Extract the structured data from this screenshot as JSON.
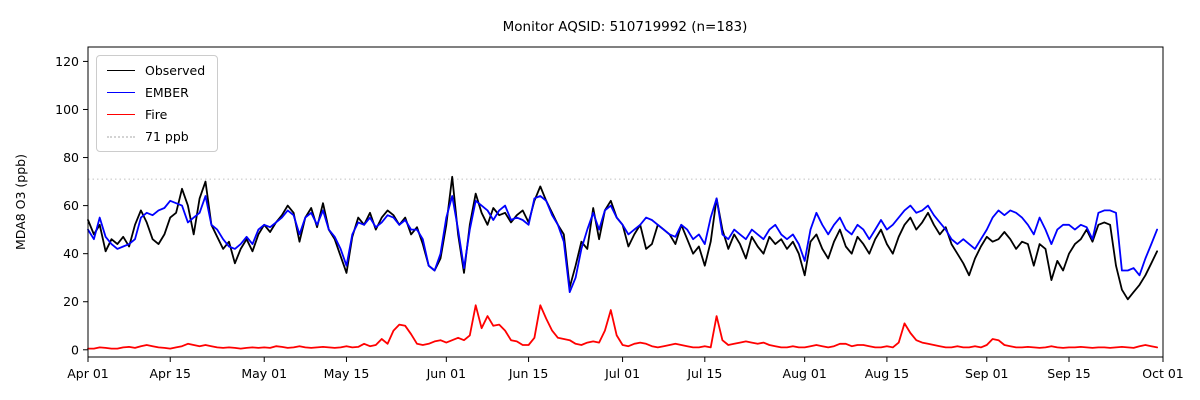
{
  "accent_colors": {
    "observed": "#000000",
    "ember": "#0000ff",
    "fire": "#ff0000",
    "threshold": "#d3d3d3",
    "frame": "#000000"
  },
  "chart_data": {
    "type": "line",
    "title": "Monitor AQSID: 510719992 (n=183)",
    "xlabel": "",
    "ylabel": "MDA8 O3 (ppb)",
    "n_points": 183,
    "x_range_days": [
      0,
      183
    ],
    "ylim": [
      -3,
      126
    ],
    "yticks": [
      0,
      20,
      40,
      60,
      80,
      100,
      120
    ],
    "xticks": [
      {
        "day": 0,
        "label": "Apr 01"
      },
      {
        "day": 14,
        "label": "Apr 15"
      },
      {
        "day": 30,
        "label": "May 01"
      },
      {
        "day": 44,
        "label": "May 15"
      },
      {
        "day": 61,
        "label": "Jun 01"
      },
      {
        "day": 75,
        "label": "Jun 15"
      },
      {
        "day": 91,
        "label": "Jul 01"
      },
      {
        "day": 105,
        "label": "Jul 15"
      },
      {
        "day": 122,
        "label": "Aug 01"
      },
      {
        "day": 136,
        "label": "Aug 15"
      },
      {
        "day": 153,
        "label": "Sep 01"
      },
      {
        "day": 167,
        "label": "Sep 15"
      },
      {
        "day": 183,
        "label": "Oct 01"
      }
    ],
    "threshold": {
      "value": 71,
      "label": "71 ppb",
      "color": "#d3d3d3",
      "style": "dotted"
    },
    "legend": {
      "position": "upper-left",
      "entries": [
        {
          "label": "Observed",
          "color": "#000000",
          "style": "solid"
        },
        {
          "label": "EMBER",
          "color": "#0000ff",
          "style": "solid"
        },
        {
          "label": "Fire",
          "color": "#ff0000",
          "style": "solid"
        },
        {
          "label": "71 ppb",
          "color": "#d3d3d3",
          "style": "dotted"
        }
      ]
    },
    "grid": false,
    "series": [
      {
        "name": "Observed",
        "color": "#000000",
        "style": "solid",
        "values": [
          54,
          48,
          52,
          41,
          46,
          44,
          47,
          43,
          52,
          58,
          53,
          46,
          44,
          48,
          55,
          57,
          67,
          60,
          48,
          63,
          70,
          52,
          47,
          42,
          45,
          36,
          42,
          46,
          41,
          48,
          52,
          49,
          53,
          56,
          60,
          57,
          45,
          55,
          59,
          51,
          61,
          50,
          46,
          39,
          32,
          47,
          55,
          52,
          57,
          50,
          55,
          58,
          56,
          52,
          55,
          48,
          51,
          44,
          35,
          33,
          38,
          52,
          72,
          48,
          32,
          52,
          65,
          57,
          52,
          59,
          56,
          57,
          53,
          56,
          58,
          53,
          62,
          68,
          62,
          57,
          52,
          48,
          26,
          35,
          45,
          42,
          59,
          46,
          58,
          62,
          55,
          52,
          43,
          48,
          52,
          42,
          44,
          52,
          50,
          48,
          44,
          52,
          46,
          40,
          43,
          35,
          45,
          63,
          50,
          42,
          48,
          44,
          38,
          47,
          43,
          40,
          47,
          44,
          46,
          42,
          45,
          40,
          31,
          45,
          48,
          42,
          38,
          45,
          50,
          43,
          40,
          47,
          44,
          40,
          46,
          50,
          44,
          40,
          47,
          52,
          55,
          50,
          53,
          57,
          52,
          48,
          51,
          44,
          40,
          36,
          31,
          38,
          43,
          47,
          45,
          46,
          49,
          46,
          42,
          45,
          44,
          35,
          44,
          42,
          29,
          37,
          33,
          40,
          44,
          46,
          50,
          45,
          52,
          53,
          52,
          35,
          25,
          21,
          24,
          27,
          31,
          36,
          41
        ]
      },
      {
        "name": "EMBER",
        "color": "#0000ff",
        "style": "solid",
        "values": [
          50,
          46,
          55,
          47,
          44,
          42,
          43,
          44,
          46,
          55,
          57,
          56,
          58,
          59,
          62,
          61,
          60,
          53,
          55,
          57,
          64,
          52,
          50,
          46,
          43,
          42,
          44,
          47,
          44,
          50,
          52,
          51,
          53,
          55,
          58,
          56,
          48,
          55,
          57,
          52,
          58,
          50,
          47,
          42,
          35,
          48,
          53,
          52,
          55,
          51,
          53,
          56,
          55,
          52,
          54,
          50,
          50,
          46,
          35,
          33,
          40,
          55,
          64,
          50,
          34,
          50,
          62,
          60,
          58,
          54,
          58,
          60,
          54,
          55,
          54,
          52,
          63,
          64,
          62,
          56,
          52,
          45,
          24,
          30,
          42,
          50,
          57,
          50,
          58,
          60,
          55,
          52,
          48,
          50,
          52,
          55,
          54,
          52,
          50,
          48,
          47,
          52,
          50,
          46,
          48,
          44,
          55,
          63,
          48,
          46,
          50,
          48,
          46,
          50,
          48,
          46,
          50,
          52,
          48,
          46,
          48,
          44,
          37,
          50,
          57,
          52,
          48,
          52,
          55,
          50,
          48,
          52,
          50,
          46,
          50,
          54,
          50,
          52,
          55,
          58,
          60,
          57,
          58,
          60,
          56,
          53,
          50,
          46,
          44,
          46,
          44,
          42,
          46,
          50,
          55,
          58,
          56,
          58,
          57,
          55,
          52,
          48,
          55,
          50,
          44,
          50,
          52,
          52,
          50,
          52,
          51,
          46,
          57,
          58,
          58,
          57,
          33,
          33,
          34,
          31,
          38,
          44,
          50
        ]
      },
      {
        "name": "Fire",
        "color": "#ff0000",
        "style": "solid",
        "values": [
          0.5,
          0.5,
          1,
          0.8,
          0.5,
          0.5,
          1,
          1.2,
          0.8,
          1.5,
          2,
          1.5,
          1,
          0.8,
          0.5,
          1,
          1.5,
          2.5,
          2,
          1.5,
          2,
          1.5,
          1,
          0.8,
          1,
          0.8,
          0.5,
          0.8,
          1,
          0.8,
          1,
          0.8,
          1.5,
          1.2,
          0.8,
          1,
          1.5,
          1,
          0.8,
          1,
          1.2,
          1,
          0.8,
          1,
          1.5,
          1,
          1.2,
          2.5,
          1.5,
          2,
          4.5,
          2.5,
          8,
          10.5,
          10,
          6.5,
          2.5,
          2,
          2.5,
          3.5,
          4,
          3,
          4,
          5,
          4,
          6,
          18.5,
          9,
          14,
          10,
          10.5,
          8,
          4,
          3.5,
          2,
          2,
          5,
          18.5,
          13,
          8,
          5,
          4.5,
          4,
          2.5,
          2,
          3,
          3.5,
          3,
          8,
          16.5,
          6,
          2,
          1.5,
          2.5,
          3,
          2.5,
          1.5,
          1,
          1.5,
          2,
          2.5,
          2,
          1.5,
          1,
          1,
          1.5,
          1,
          14,
          4,
          2,
          2.5,
          3,
          3.5,
          3,
          2.5,
          3,
          2,
          1.5,
          1,
          1,
          1.5,
          1,
          1,
          1.5,
          2,
          1.5,
          1,
          1.5,
          2.5,
          2.5,
          1.5,
          2,
          2,
          1.5,
          1,
          1,
          1.5,
          1,
          3,
          11,
          7,
          4,
          3,
          2.5,
          2,
          1.5,
          1,
          1,
          1.5,
          1,
          1,
          1.5,
          1,
          2,
          4.5,
          4,
          2,
          1.5,
          1,
          1,
          1.2,
          1,
          0.8,
          1,
          1.5,
          1,
          0.8,
          1,
          1,
          1.2,
          1,
          0.8,
          1,
          1,
          0.8,
          1,
          1.2,
          1,
          0.8,
          1.5,
          2,
          1.5,
          1
        ]
      }
    ]
  }
}
